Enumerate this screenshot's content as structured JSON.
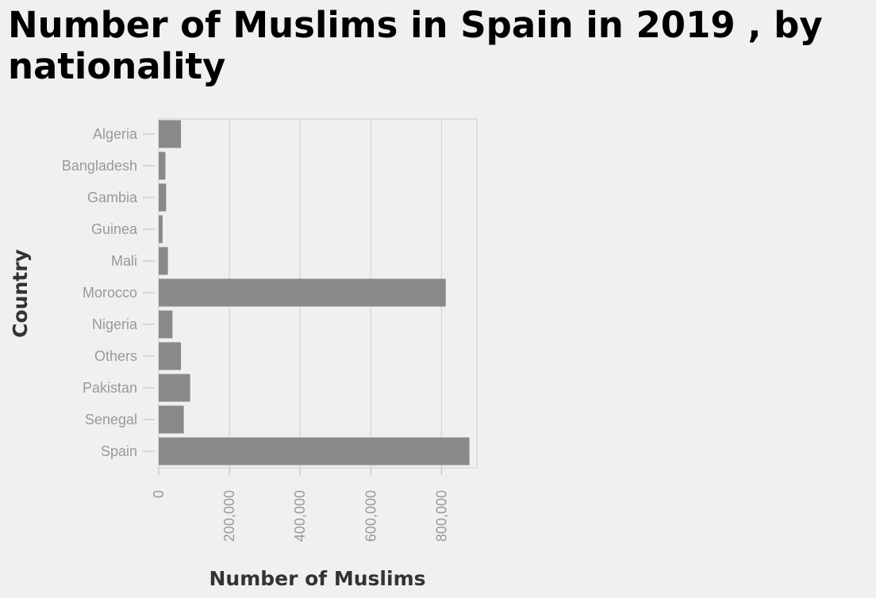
{
  "chart_data": {
    "type": "bar",
    "orientation": "horizontal",
    "title": "Number of Muslims in Spain in 2019 , by nationality",
    "xlabel": "Number of Muslims",
    "ylabel": "Country",
    "categories": [
      "Algeria",
      "Bangladesh",
      "Gambia",
      "Guinea",
      "Mali",
      "Morocco",
      "Nigeria",
      "Others",
      "Pakistan",
      "Senegal",
      "Spain"
    ],
    "values": [
      63000,
      19000,
      21000,
      11000,
      26000,
      812000,
      39000,
      63000,
      89000,
      71000,
      879000
    ],
    "xlim": [
      0,
      900000
    ],
    "xticks": [
      0,
      200000,
      400000,
      600000,
      800000
    ],
    "xtick_labels": [
      "0",
      "200,000",
      "400,000",
      "600,000",
      "800,000"
    ],
    "grid": true,
    "colors": {
      "bar": "#8a8a8a",
      "grid": "#d9d9d9",
      "background": "#f0f0f0",
      "tick_text": "#999999"
    }
  }
}
